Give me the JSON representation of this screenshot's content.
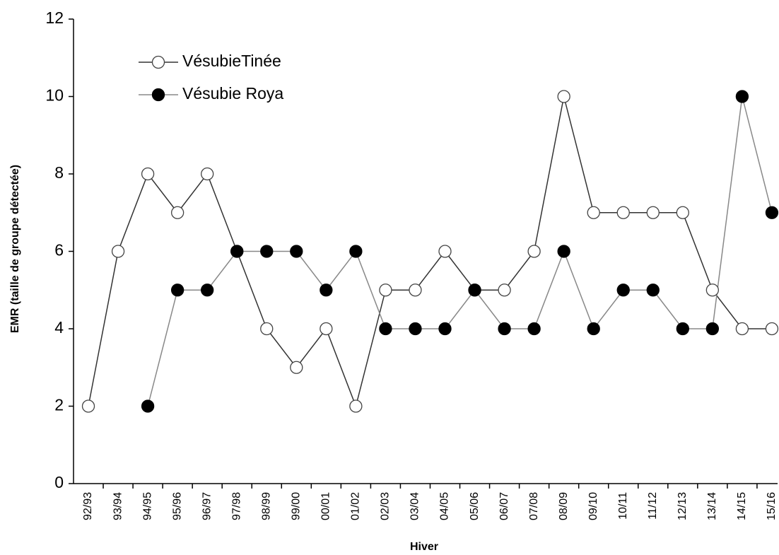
{
  "chart_data": {
    "type": "line",
    "x_label": "Hiver",
    "y_label": "EMR (taille de groupe détectée)",
    "categories": [
      "92/93",
      "93/94",
      "94/95",
      "95/96",
      "96/97",
      "97/98",
      "98/99",
      "99/00",
      "00/01",
      "01/02",
      "02/03",
      "03/04",
      "04/05",
      "05/06",
      "06/07",
      "07/08",
      "08/09",
      "09/10",
      "10/11",
      "11/12",
      "12/13",
      "13/14",
      "14/15",
      "15/16"
    ],
    "series": [
      {
        "name": "VésubieTinée",
        "color": "#333333",
        "marker": "open",
        "values": [
          2,
          6,
          8,
          7,
          8,
          6,
          4,
          3,
          4,
          2,
          5,
          5,
          6,
          5,
          5,
          6,
          10,
          7,
          7,
          7,
          7,
          5,
          4,
          4
        ]
      },
      {
        "name": "Vésubie Roya",
        "color": "#888888",
        "marker": "filled",
        "values": [
          null,
          null,
          2,
          5,
          5,
          6,
          6,
          6,
          5,
          6,
          4,
          4,
          4,
          5,
          4,
          4,
          6,
          4,
          5,
          5,
          4,
          4,
          10,
          7
        ]
      }
    ],
    "ylim": [
      0,
      12
    ],
    "yticks": [
      0,
      2,
      4,
      6,
      8,
      10,
      12
    ],
    "grid": false,
    "legend": "top-left"
  }
}
